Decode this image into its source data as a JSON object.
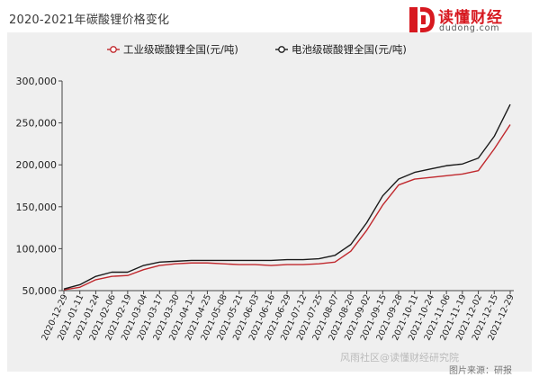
{
  "header": {
    "title": "2020-2021年碳酸锂价格变化"
  },
  "logo": {
    "name": "读懂财经",
    "domain": "dudong.com"
  },
  "footer": {
    "source": "图片来源：研报",
    "watermark": "风雨社区@读懂财经研究院"
  },
  "colors": {
    "industrial": "#c0282d",
    "battery": "#1a1a1a",
    "brand": "#d71920",
    "panel": "#efefef"
  },
  "chart_data": {
    "type": "line",
    "title": "",
    "xlabel": "",
    "ylabel": "",
    "ylim": [
      50000,
      300000
    ],
    "yticks": [
      50000,
      100000,
      150000,
      200000,
      250000,
      300000
    ],
    "ytick_labels": [
      "50,000",
      "100,000",
      "150,000",
      "200,000",
      "250,000",
      "300,000"
    ],
    "grid": false,
    "legend_position": "top-center",
    "x": [
      "2020-12-29",
      "2021-01-11",
      "2021-01-24",
      "2021-02-06",
      "2021-02-19",
      "2021-03-04",
      "2021-03-17",
      "2021-03-30",
      "2021-04-12",
      "2021-04-25",
      "2021-05-08",
      "2021-05-21",
      "2021-06-03",
      "2021-06-16",
      "2021-06-29",
      "2021-07-12",
      "2021-07-25",
      "2021-08-07",
      "2021-08-20",
      "2021-09-02",
      "2021-09-15",
      "2021-09-28",
      "2021-10-11",
      "2021-10-24",
      "2021-11-06",
      "2021-11-19",
      "2021-12-02",
      "2021-12-15",
      "2021-12-29"
    ],
    "series": [
      {
        "name": "工业级碳酸锂全国(元/吨)",
        "color": "#c0282d",
        "values": [
          51000,
          54000,
          63000,
          67000,
          68000,
          75000,
          80000,
          82000,
          83000,
          83000,
          82000,
          81000,
          81000,
          80000,
          81000,
          81000,
          82000,
          84000,
          97000,
          122000,
          152000,
          176000,
          183000,
          185000,
          187000,
          189000,
          193000,
          219000,
          248000
        ]
      },
      {
        "name": "电池级碳酸锂全国(元/吨)",
        "color": "#1a1a1a",
        "values": [
          52000,
          57000,
          67000,
          72000,
          72000,
          80000,
          84000,
          85000,
          86000,
          86000,
          86000,
          86000,
          86000,
          86000,
          87000,
          87000,
          88000,
          92000,
          105000,
          131000,
          163000,
          183000,
          191000,
          195000,
          199000,
          201000,
          208000,
          234000,
          272000
        ]
      }
    ]
  }
}
